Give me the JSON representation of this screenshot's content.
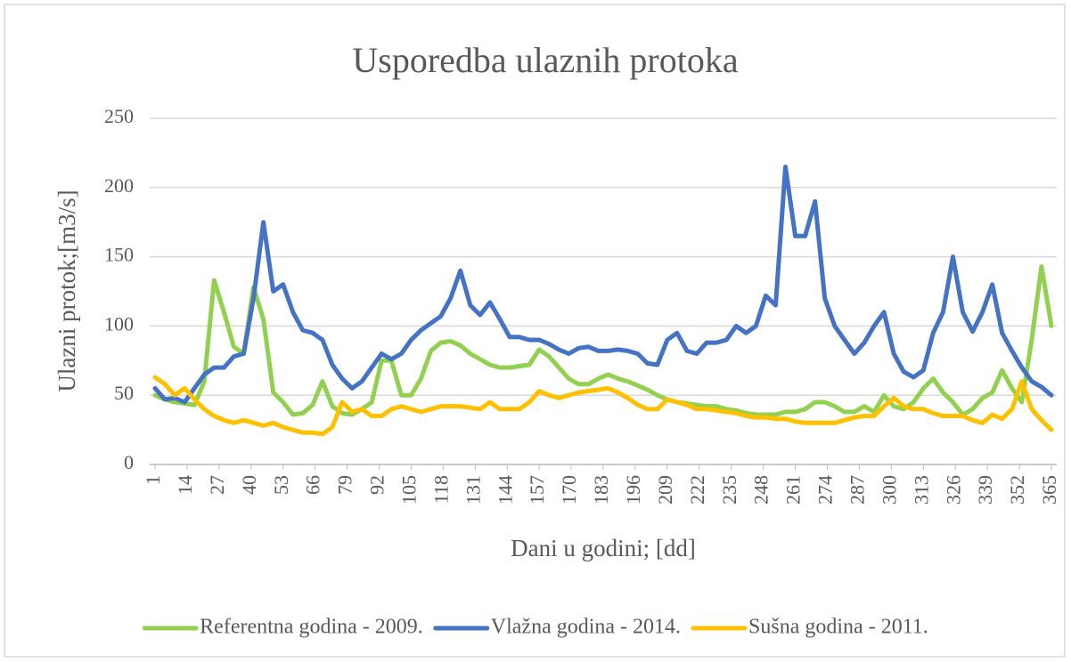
{
  "chart_data": {
    "type": "line",
    "title": "Usporedba ulaznih protoka",
    "y_label": "Ulazni protok;[m3/s]",
    "x_label": "Dani u godini; [dd]",
    "xlim": [
      1,
      365
    ],
    "xticks": [
      1,
      14,
      27,
      40,
      53,
      66,
      79,
      92,
      105,
      118,
      131,
      144,
      157,
      170,
      183,
      196,
      209,
      222,
      235,
      248,
      261,
      274,
      287,
      300,
      313,
      326,
      339,
      352,
      365
    ],
    "ylim": [
      0,
      250
    ],
    "yticks": [
      0,
      50,
      100,
      150,
      200,
      250
    ],
    "grid": true,
    "legend": "bottom",
    "x": [
      1,
      5,
      9,
      13,
      17,
      21,
      25,
      29,
      33,
      37,
      41,
      45,
      49,
      53,
      57,
      61,
      65,
      69,
      73,
      77,
      81,
      85,
      89,
      93,
      97,
      101,
      105,
      109,
      113,
      117,
      121,
      125,
      129,
      133,
      137,
      141,
      145,
      149,
      153,
      157,
      161,
      165,
      169,
      173,
      177,
      181,
      185,
      189,
      193,
      197,
      201,
      205,
      209,
      213,
      217,
      221,
      225,
      229,
      233,
      237,
      241,
      245,
      249,
      253,
      257,
      261,
      265,
      269,
      273,
      277,
      281,
      285,
      289,
      293,
      297,
      301,
      305,
      309,
      313,
      317,
      321,
      325,
      329,
      333,
      337,
      341,
      345,
      349,
      353,
      357,
      361,
      365
    ],
    "series": [
      {
        "name": "Referentna godina - 2009.",
        "color": "#92d050",
        "values": [
          50,
          47,
          45,
          44,
          43,
          60,
          133,
          110,
          85,
          80,
          128,
          105,
          52,
          45,
          36,
          37,
          43,
          60,
          42,
          37,
          36,
          40,
          45,
          75,
          75,
          50,
          50,
          62,
          82,
          88,
          89,
          86,
          80,
          76,
          72,
          70,
          70,
          71,
          72,
          83,
          78,
          70,
          62,
          58,
          58,
          62,
          65,
          62,
          60,
          57,
          54,
          50,
          47,
          45,
          44,
          43,
          42,
          42,
          40,
          39,
          37,
          36,
          36,
          36,
          38,
          38,
          40,
          45,
          45,
          42,
          38,
          38,
          42,
          38,
          50,
          42,
          40,
          45,
          55,
          62,
          52,
          45,
          36,
          40,
          48,
          52,
          68,
          55,
          45,
          90,
          143,
          100
        ]
      },
      {
        "name": "Vlažna godina - 2014.",
        "color": "#4472c4",
        "values": [
          55,
          47,
          48,
          45,
          55,
          65,
          70,
          70,
          78,
          80,
          120,
          175,
          125,
          130,
          110,
          97,
          95,
          90,
          72,
          62,
          55,
          60,
          70,
          80,
          76,
          80,
          90,
          97,
          102,
          107,
          120,
          140,
          115,
          108,
          117,
          105,
          92,
          92,
          90,
          90,
          87,
          83,
          80,
          84,
          85,
          82,
          82,
          83,
          82,
          80,
          73,
          72,
          90,
          95,
          82,
          80,
          88,
          88,
          90,
          100,
          95,
          100,
          122,
          115,
          215,
          165,
          165,
          190,
          120,
          100,
          90,
          80,
          88,
          100,
          110,
          80,
          67,
          63,
          68,
          95,
          110,
          150,
          110,
          96,
          110,
          130,
          95,
          82,
          70,
          60,
          56,
          50
        ]
      },
      {
        "name": "Sušna godina - 2011.",
        "color": "#ffc000",
        "values": [
          63,
          58,
          50,
          55,
          47,
          40,
          35,
          32,
          30,
          32,
          30,
          28,
          30,
          27,
          25,
          23,
          23,
          22,
          27,
          45,
          38,
          40,
          35,
          35,
          40,
          42,
          40,
          38,
          40,
          42,
          42,
          42,
          41,
          40,
          45,
          40,
          40,
          40,
          45,
          53,
          50,
          48,
          50,
          52,
          53,
          54,
          55,
          52,
          48,
          43,
          40,
          40,
          47,
          45,
          43,
          40,
          40,
          39,
          38,
          37,
          35,
          34,
          34,
          33,
          33,
          31,
          30,
          30,
          30,
          30,
          32,
          34,
          35,
          35,
          42,
          48,
          42,
          40,
          40,
          37,
          35,
          35,
          35,
          32,
          30,
          36,
          33,
          40,
          60,
          40,
          32,
          25
        ]
      }
    ]
  }
}
